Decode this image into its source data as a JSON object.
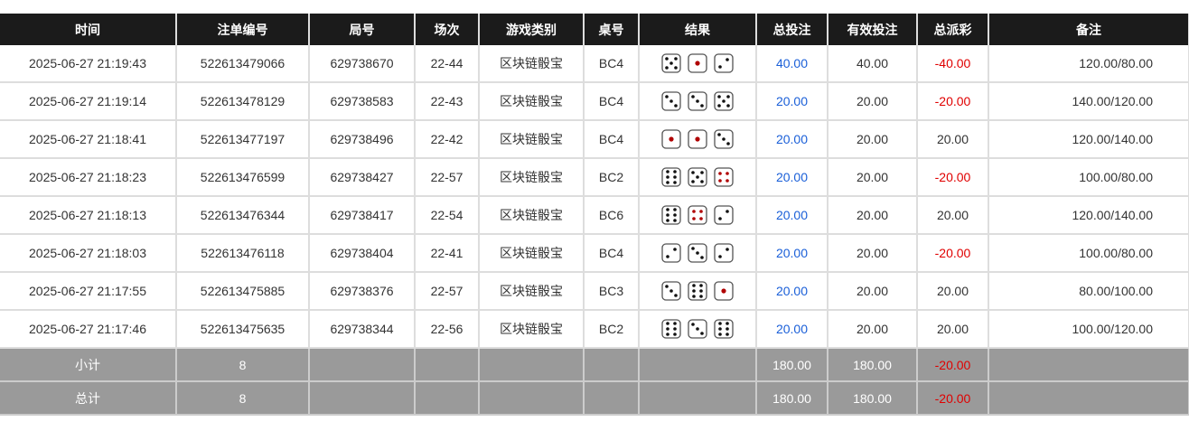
{
  "headers": [
    "时间",
    "注单编号",
    "局号",
    "场次",
    "游戏类别",
    "桌号",
    "结果",
    "总投注",
    "有效投注",
    "总派彩",
    "备注"
  ],
  "rows": [
    {
      "time": "2025-06-27 21:19:43",
      "bet_id": "522613479066",
      "round": "629738670",
      "session": "22-44",
      "game": "区块链骰宝",
      "table": "BC4",
      "dice": [
        5,
        1,
        2
      ],
      "total_bet": "40.00",
      "valid_bet": "40.00",
      "payout": "-40.00",
      "note": "120.00/80.00"
    },
    {
      "time": "2025-06-27 21:19:14",
      "bet_id": "522613478129",
      "round": "629738583",
      "session": "22-43",
      "game": "区块链骰宝",
      "table": "BC4",
      "dice": [
        3,
        3,
        5
      ],
      "total_bet": "20.00",
      "valid_bet": "20.00",
      "payout": "-20.00",
      "note": "140.00/120.00"
    },
    {
      "time": "2025-06-27 21:18:41",
      "bet_id": "522613477197",
      "round": "629738496",
      "session": "22-42",
      "game": "区块链骰宝",
      "table": "BC4",
      "dice": [
        1,
        1,
        3
      ],
      "total_bet": "20.00",
      "valid_bet": "20.00",
      "payout": "20.00",
      "note": "120.00/140.00"
    },
    {
      "time": "2025-06-27 21:18:23",
      "bet_id": "522613476599",
      "round": "629738427",
      "session": "22-57",
      "game": "区块链骰宝",
      "table": "BC2",
      "dice": [
        6,
        5,
        4
      ],
      "total_bet": "20.00",
      "valid_bet": "20.00",
      "payout": "-20.00",
      "note": "100.00/80.00"
    },
    {
      "time": "2025-06-27 21:18:13",
      "bet_id": "522613476344",
      "round": "629738417",
      "session": "22-54",
      "game": "区块链骰宝",
      "table": "BC6",
      "dice": [
        6,
        4,
        2
      ],
      "total_bet": "20.00",
      "valid_bet": "20.00",
      "payout": "20.00",
      "note": "120.00/140.00"
    },
    {
      "time": "2025-06-27 21:18:03",
      "bet_id": "522613476118",
      "round": "629738404",
      "session": "22-41",
      "game": "区块链骰宝",
      "table": "BC4",
      "dice": [
        2,
        3,
        2
      ],
      "total_bet": "20.00",
      "valid_bet": "20.00",
      "payout": "-20.00",
      "note": "100.00/80.00"
    },
    {
      "time": "2025-06-27 21:17:55",
      "bet_id": "522613475885",
      "round": "629738376",
      "session": "22-57",
      "game": "区块链骰宝",
      "table": "BC3",
      "dice": [
        3,
        6,
        1
      ],
      "total_bet": "20.00",
      "valid_bet": "20.00",
      "payout": "20.00",
      "note": "80.00/100.00"
    },
    {
      "time": "2025-06-27 21:17:46",
      "bet_id": "522613475635",
      "round": "629738344",
      "session": "22-56",
      "game": "区块链骰宝",
      "table": "BC2",
      "dice": [
        6,
        3,
        6
      ],
      "total_bet": "20.00",
      "valid_bet": "20.00",
      "payout": "20.00",
      "note": "100.00/120.00"
    }
  ],
  "subtotal": {
    "label": "小计",
    "count": "8",
    "total_bet": "180.00",
    "valid_bet": "180.00",
    "payout": "-20.00"
  },
  "grand_total": {
    "label": "总计",
    "count": "8",
    "total_bet": "180.00",
    "valid_bet": "180.00",
    "payout": "-20.00"
  },
  "colors": {
    "header_bg": "#1b1b1b",
    "positive_bet": "#1a5fd8",
    "negative": "#e00000",
    "summary_bg": "#9a9a9a"
  }
}
